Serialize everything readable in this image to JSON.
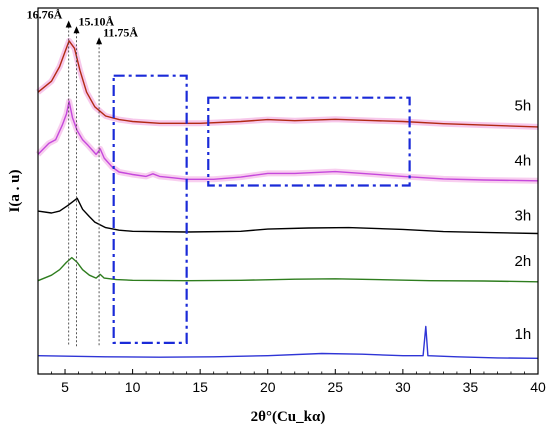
{
  "chart_data": {
    "type": "line",
    "title": "",
    "xlabel": "2θ°(Cu_kα)",
    "ylabel": "I(a . u)",
    "xlim": [
      3,
      40
    ],
    "x_ticks": [
      5,
      10,
      15,
      20,
      25,
      30,
      35,
      40
    ],
    "y_ticks_shown": false,
    "grid": false,
    "legend": "none (series labelled at right end)",
    "series": [
      {
        "name": "5h",
        "color": "#b22a14",
        "glow_color": "#f4b6e4",
        "points": [
          [
            3.0,
            0.77
          ],
          [
            4.0,
            0.8
          ],
          [
            4.6,
            0.84
          ],
          [
            5.0,
            0.88
          ],
          [
            5.3,
            0.91
          ],
          [
            5.7,
            0.89
          ],
          [
            6.1,
            0.83
          ],
          [
            6.6,
            0.77
          ],
          [
            7.2,
            0.73
          ],
          [
            8.0,
            0.705
          ],
          [
            9.0,
            0.695
          ],
          [
            10.0,
            0.69
          ],
          [
            12.0,
            0.685
          ],
          [
            15.0,
            0.685
          ],
          [
            18.0,
            0.69
          ],
          [
            20.0,
            0.695
          ],
          [
            22.0,
            0.692
          ],
          [
            25.0,
            0.696
          ],
          [
            28.0,
            0.692
          ],
          [
            30.0,
            0.69
          ],
          [
            33.0,
            0.684
          ],
          [
            36.0,
            0.68
          ],
          [
            40.0,
            0.675
          ]
        ]
      },
      {
        "name": "4h",
        "color": "#c548dc",
        "glow_color": "#f6bdea",
        "points": [
          [
            3.0,
            0.6
          ],
          [
            3.8,
            0.63
          ],
          [
            4.3,
            0.64
          ],
          [
            4.8,
            0.68
          ],
          [
            5.1,
            0.71
          ],
          [
            5.3,
            0.745
          ],
          [
            5.55,
            0.7
          ],
          [
            5.9,
            0.665
          ],
          [
            6.3,
            0.64
          ],
          [
            6.7,
            0.625
          ],
          [
            7.3,
            0.6
          ],
          [
            7.6,
            0.615
          ],
          [
            7.9,
            0.59
          ],
          [
            8.5,
            0.565
          ],
          [
            9.0,
            0.552
          ],
          [
            10.0,
            0.545
          ],
          [
            11.0,
            0.54
          ],
          [
            11.5,
            0.547
          ],
          [
            12.0,
            0.54
          ],
          [
            13.0,
            0.536
          ],
          [
            14.0,
            0.532
          ],
          [
            16.0,
            0.532
          ],
          [
            18.0,
            0.538
          ],
          [
            20.0,
            0.548
          ],
          [
            22.0,
            0.548
          ],
          [
            25.0,
            0.553
          ],
          [
            27.0,
            0.548
          ],
          [
            30.0,
            0.54
          ],
          [
            33.0,
            0.533
          ],
          [
            36.0,
            0.53
          ],
          [
            40.0,
            0.528
          ]
        ]
      },
      {
        "name": "3h",
        "color": "#000000",
        "points": [
          [
            3.0,
            0.445
          ],
          [
            4.0,
            0.44
          ],
          [
            4.6,
            0.445
          ],
          [
            5.2,
            0.46
          ],
          [
            5.9,
            0.48
          ],
          [
            6.3,
            0.45
          ],
          [
            6.8,
            0.43
          ],
          [
            7.2,
            0.415
          ],
          [
            8.0,
            0.4
          ],
          [
            9.0,
            0.393
          ],
          [
            10.0,
            0.39
          ],
          [
            14.0,
            0.388
          ],
          [
            18.0,
            0.39
          ],
          [
            20.0,
            0.396
          ],
          [
            23.0,
            0.399
          ],
          [
            26.0,
            0.4
          ],
          [
            30.0,
            0.395
          ],
          [
            33.0,
            0.389
          ],
          [
            36.0,
            0.387
          ],
          [
            40.0,
            0.384
          ]
        ]
      },
      {
        "name": "2h",
        "color": "#2e7d1e",
        "points": [
          [
            3.0,
            0.255
          ],
          [
            4.0,
            0.27
          ],
          [
            4.6,
            0.285
          ],
          [
            5.1,
            0.305
          ],
          [
            5.5,
            0.318
          ],
          [
            5.9,
            0.305
          ],
          [
            6.3,
            0.285
          ],
          [
            6.8,
            0.27
          ],
          [
            7.3,
            0.262
          ],
          [
            7.6,
            0.272
          ],
          [
            7.9,
            0.262
          ],
          [
            8.8,
            0.258
          ],
          [
            10.0,
            0.256
          ],
          [
            14.0,
            0.255
          ],
          [
            18.0,
            0.256
          ],
          [
            22.0,
            0.259
          ],
          [
            25.0,
            0.26
          ],
          [
            28.0,
            0.258
          ],
          [
            32.0,
            0.255
          ],
          [
            36.0,
            0.254
          ],
          [
            40.0,
            0.252
          ]
        ]
      },
      {
        "name": "1h",
        "color": "#2f35d6",
        "points": [
          [
            3.0,
            0.05
          ],
          [
            8.0,
            0.047
          ],
          [
            12.0,
            0.046
          ],
          [
            16.0,
            0.047
          ],
          [
            20.0,
            0.05
          ],
          [
            24.0,
            0.056
          ],
          [
            27.0,
            0.054
          ],
          [
            30.0,
            0.05
          ],
          [
            31.5,
            0.05
          ],
          [
            31.7,
            0.13
          ],
          [
            31.85,
            0.05
          ],
          [
            34.0,
            0.047
          ],
          [
            37.0,
            0.044
          ],
          [
            40.0,
            0.043
          ]
        ]
      }
    ],
    "peak_annotations": [
      {
        "label": "16.76Å",
        "x": 5.27
      },
      {
        "label": "15.10Å",
        "x": 5.85
      },
      {
        "label": "11.75Å",
        "x": 7.52
      }
    ],
    "highlight_boxes": [
      {
        "x_range": [
          8.6,
          14.0
        ],
        "y_range": [
          0.085,
          0.815
        ]
      },
      {
        "x_range": [
          15.6,
          30.5
        ],
        "y_range": [
          0.515,
          0.755
        ]
      }
    ],
    "series_label_positions": [
      {
        "name": "5h",
        "x": 39.5,
        "y": 0.72
      },
      {
        "name": "4h",
        "x": 39.5,
        "y": 0.57
      },
      {
        "name": "3h",
        "x": 39.5,
        "y": 0.42
      },
      {
        "name": "2h",
        "x": 39.5,
        "y": 0.295
      },
      {
        "name": "1h",
        "x": 39.5,
        "y": 0.095
      }
    ]
  }
}
